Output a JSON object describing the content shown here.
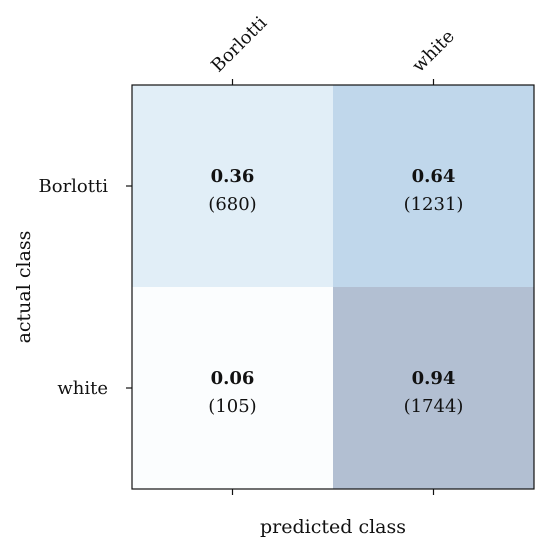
{
  "chart_data": {
    "type": "heatmap",
    "xlabel": "predicted class",
    "ylabel": "actual class",
    "x_categories": [
      "Borlotti",
      "white"
    ],
    "y_categories": [
      "Borlotti",
      "white"
    ],
    "cells": [
      [
        {
          "ratio": "0.36",
          "count": "(680)",
          "color": "#e1eef7"
        },
        {
          "ratio": "0.64",
          "count": "(1231)",
          "color": "#c0d7eb"
        }
      ],
      [
        {
          "ratio": "0.06",
          "count": "(105)",
          "color": "#fbfdfe"
        },
        {
          "ratio": "0.94",
          "count": "(1744)",
          "color": "#b2bfd2"
        }
      ]
    ],
    "x_tick_position": "top",
    "grid": false,
    "legend": "none"
  }
}
